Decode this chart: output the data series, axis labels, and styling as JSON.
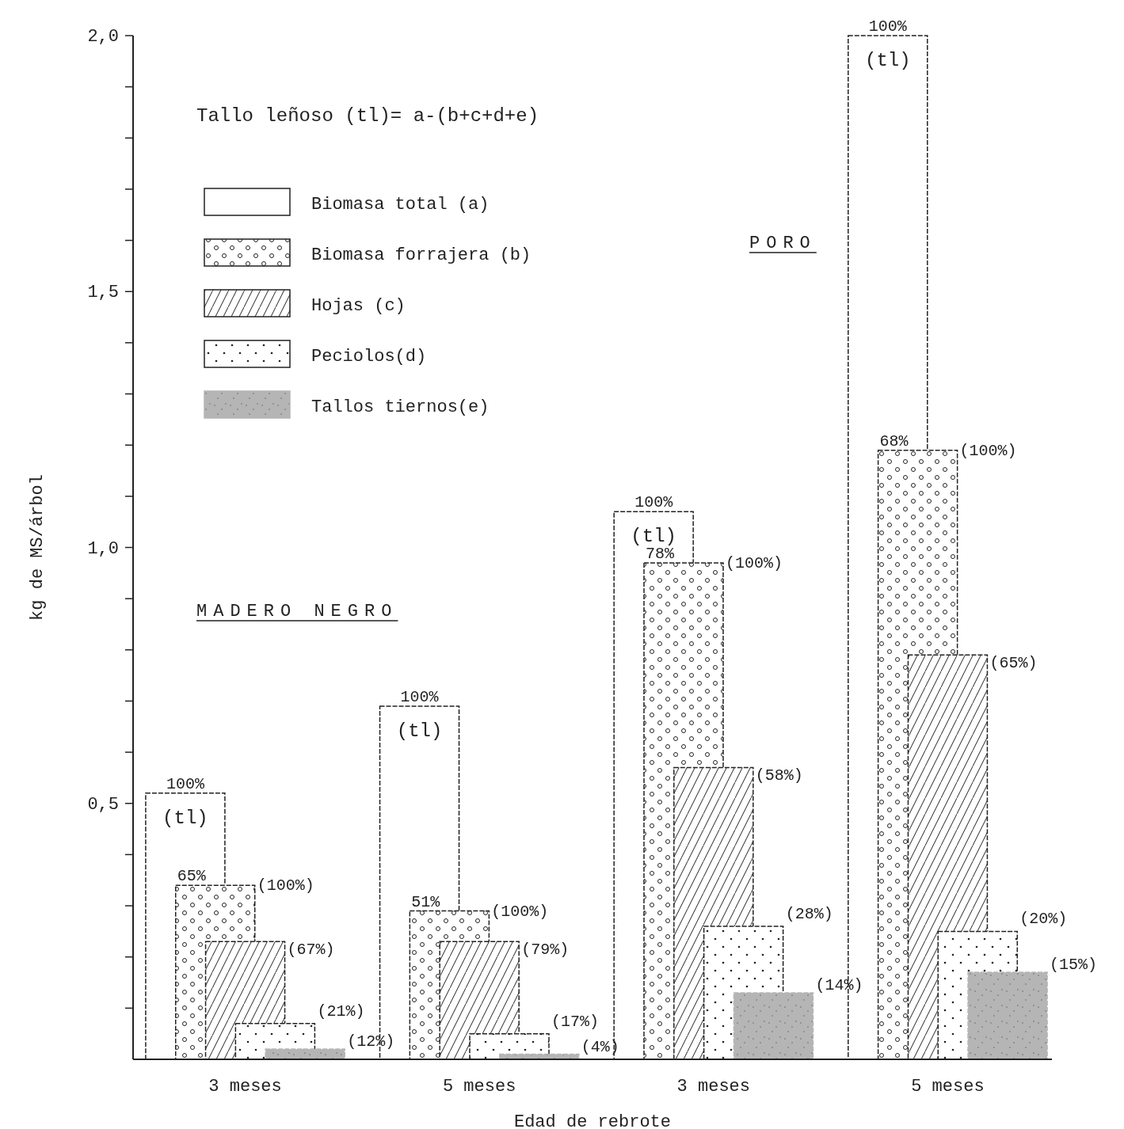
{
  "chart_data": {
    "type": "bar",
    "xlabel": "Edad de rebrote",
    "ylabel": "kg de MS/árbol",
    "categories": [
      "3 meses",
      "5 meses",
      "3 meses",
      "5 meses"
    ],
    "series": [
      {
        "name": "Biomasa total (a)",
        "color": "#222222",
        "values": [
          0.52,
          0.69,
          1.07,
          2.0
        ]
      },
      {
        "name": "Biomasa forrajera (b)",
        "color": "#222222",
        "values": [
          0.34,
          0.29,
          0.97,
          1.19
        ]
      },
      {
        "name": "Hojas (c)",
        "color": "#222222",
        "values": [
          0.23,
          0.23,
          0.57,
          0.79
        ]
      },
      {
        "name": "Peciolos(d)",
        "color": "#222222",
        "values": [
          0.07,
          0.05,
          0.26,
          0.25
        ]
      },
      {
        "name": "Tallos tiernos(e)",
        "color": "#b5b5b5",
        "values": [
          0.02,
          0.01,
          0.13,
          0.17
        ]
      }
    ],
    "ylim": [
      0,
      2.0
    ],
    "yticks": [
      {
        "value": 0.1,
        "label": null
      },
      {
        "value": 0.2,
        "label": null
      },
      {
        "value": 0.3,
        "label": null
      },
      {
        "value": 0.4,
        "label": null
      },
      {
        "value": 0.5,
        "label": "0,5"
      },
      {
        "value": 0.6,
        "label": null
      },
      {
        "value": 0.7,
        "label": null
      },
      {
        "value": 0.8,
        "label": null
      },
      {
        "value": 0.9,
        "label": null
      },
      {
        "value": 1.0,
        "label": "1,0"
      },
      {
        "value": 1.1,
        "label": null
      },
      {
        "value": 1.2,
        "label": null
      },
      {
        "value": 1.3,
        "label": null
      },
      {
        "value": 1.4,
        "label": null
      },
      {
        "value": 1.5,
        "label": "1,5"
      },
      {
        "value": 1.6,
        "label": null
      },
      {
        "value": 1.7,
        "label": null
      },
      {
        "value": 1.8,
        "label": null
      },
      {
        "value": 1.9,
        "label": null
      },
      {
        "value": 2.0,
        "label": "2,0"
      }
    ],
    "legend": "top left",
    "grid": false,
    "annotations": [
      "Tallo leñoso (tl)= a-(b+c+d+e)",
      "MADERO NEGRO",
      "PORO",
      "(tl)",
      "(tl)",
      "(tl)",
      "(tl)",
      "100%",
      "65%",
      "(100%)",
      "(67%)",
      "(21%)",
      "(12%)",
      "100%",
      "51%",
      "(100%)",
      "(79%)",
      "(17%)",
      "(4%)",
      "100%",
      "78%",
      "(100%)",
      "(58%)",
      "(28%)",
      "(14%)",
      "100%",
      "68%",
      "(100%)",
      "(65%)",
      "(20%)",
      "(15%)"
    ]
  }
}
